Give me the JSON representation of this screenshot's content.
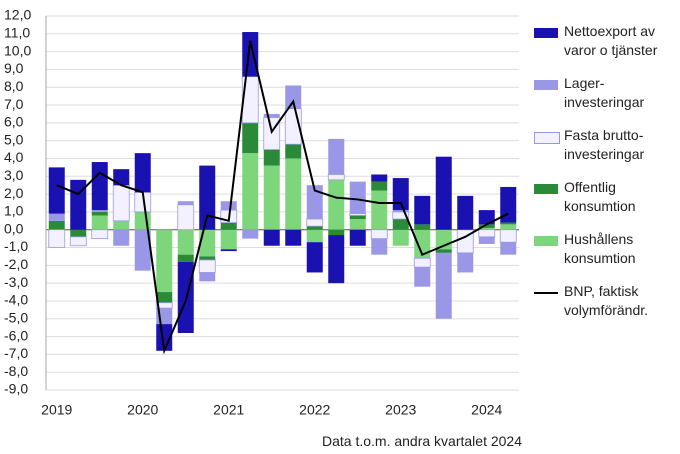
{
  "chart_data": {
    "type": "stacked-bar-line",
    "categories": [
      "2019",
      null,
      null,
      null,
      "2020",
      null,
      null,
      null,
      "2021",
      null,
      null,
      null,
      "2022",
      null,
      null,
      null,
      "2023",
      null,
      null,
      null,
      "2024",
      null
    ],
    "series": [
      {
        "name": "Nettoexport av\nvaror o tjänster",
        "color": "#1a12b0",
        "values": [
          2.6,
          2.8,
          2.7,
          0.9,
          2.2,
          -1.5,
          -4.0,
          3.6,
          -0.1,
          2.5,
          -0.9,
          -0.9,
          -1.7,
          -2.7,
          -0.9,
          0.4,
          1.8,
          1.6,
          4.1,
          1.9,
          0.8,
          2.0
        ]
      },
      {
        "name": "Lager-\ninvesteringar",
        "color": "#9a98e6",
        "values": [
          0.4,
          0.0,
          0.1,
          -0.9,
          -2.3,
          -0.9,
          0.2,
          -0.5,
          0.5,
          -0.5,
          0.2,
          1.3,
          1.9,
          2.0,
          1.8,
          -0.9,
          0.1,
          -1.1,
          -3.7,
          -1.1,
          -0.4,
          -0.7
        ]
      },
      {
        "name": "Fasta brutto-\ninvesteringar",
        "color": "#f3f1ff",
        "values": [
          -1.0,
          -0.5,
          -0.5,
          2.0,
          1.1,
          -0.3,
          1.4,
          -0.7,
          0.7,
          2.6,
          1.8,
          2.0,
          0.4,
          0.3,
          0.1,
          -0.5,
          0.4,
          -0.5,
          0.0,
          -1.3,
          -0.4,
          -0.7
        ]
      },
      {
        "name": "Offentlig\nkonsumtion",
        "color": "#2a8a3a",
        "values": [
          0.5,
          -0.4,
          0.2,
          0.0,
          0.0,
          -0.6,
          -0.4,
          -0.2,
          0.4,
          1.7,
          0.9,
          0.8,
          0.2,
          -0.3,
          0.2,
          0.5,
          0.6,
          0.3,
          -0.2,
          0.0,
          0.2,
          0.1
        ]
      },
      {
        "name": "Hushållens\nkonsumtion",
        "color": "#7ed67c",
        "values": [
          0.0,
          0.0,
          0.8,
          0.5,
          1.0,
          -3.5,
          -1.4,
          -1.5,
          -1.1,
          4.3,
          3.6,
          4.0,
          -0.7,
          2.8,
          0.6,
          2.2,
          -0.9,
          -1.6,
          -1.1,
          0.0,
          0.1,
          0.3
        ]
      },
      {
        "name": "BNP, faktisk\nvolymförändr.",
        "color": "#000000",
        "kind": "line",
        "values": [
          2.5,
          2.0,
          3.2,
          2.5,
          2.1,
          -6.8,
          -4.0,
          0.8,
          0.5,
          10.6,
          5.5,
          7.2,
          2.2,
          1.8,
          1.7,
          1.5,
          1.5,
          -1.4,
          -0.9,
          -0.4,
          0.3,
          0.9
        ]
      }
    ],
    "ylim": [
      -9,
      12
    ],
    "yticks": [
      {
        "value": -9,
        "label": "-9,0"
      },
      {
        "value": -8,
        "label": "-8,0"
      },
      {
        "value": -7,
        "label": "-7,0"
      },
      {
        "value": -6,
        "label": "-6,0"
      },
      {
        "value": -5,
        "label": "-5,0"
      },
      {
        "value": -4,
        "label": "-4,0"
      },
      {
        "value": -3,
        "label": "-3,0"
      },
      {
        "value": -2,
        "label": "-2,0"
      },
      {
        "value": -1,
        "label": "-1,0"
      },
      {
        "value": 0,
        "label": "0,0"
      },
      {
        "value": 1,
        "label": "1,0"
      },
      {
        "value": 2,
        "label": "2,0"
      },
      {
        "value": 3,
        "label": "3,0"
      },
      {
        "value": 4,
        "label": "4,0"
      },
      {
        "value": 5,
        "label": "5,0"
      },
      {
        "value": 6,
        "label": "6,0"
      },
      {
        "value": 7,
        "label": "7,0"
      },
      {
        "value": 8,
        "label": "8,0"
      },
      {
        "value": 9,
        "label": "9,0"
      },
      {
        "value": 10,
        "label": "10,0"
      },
      {
        "value": 11,
        "label": "11,0"
      },
      {
        "value": 12,
        "label": "12,0"
      }
    ],
    "grid": true,
    "legend": "right",
    "note": "Data t.o.m. andra kvartalet 2024"
  }
}
